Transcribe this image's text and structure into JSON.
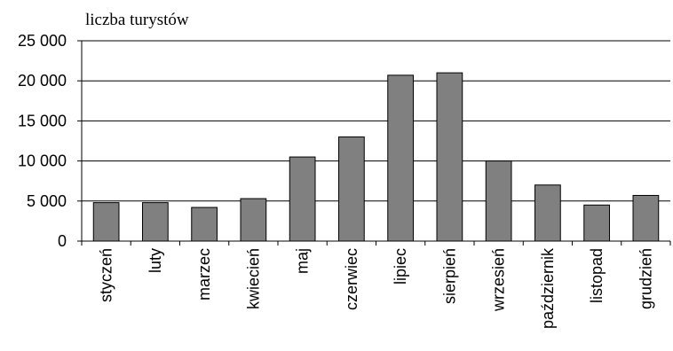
{
  "chart_data": {
    "type": "bar",
    "title": "",
    "xlabel": "",
    "ylabel": "liczba turystów",
    "categories": [
      "styczeń",
      "luty",
      "marzec",
      "kwiecień",
      "maj",
      "czerwiec",
      "lipiec",
      "sierpień",
      "wrzesień",
      "październik",
      "listopad",
      "grudzień"
    ],
    "values": [
      4800,
      4800,
      4200,
      5300,
      10500,
      13000,
      20700,
      21000,
      10000,
      7000,
      4500,
      5700
    ],
    "ylim": [
      0,
      25000
    ],
    "yticks": [
      "0",
      "5 000",
      "10 000",
      "15 000",
      "20 000",
      "25 000"
    ],
    "grid": true,
    "legend": "none",
    "colors": {
      "bar_fill": "#808080",
      "bar_stroke": "#000000",
      "grid": "#000000",
      "axis": "#000000"
    }
  }
}
